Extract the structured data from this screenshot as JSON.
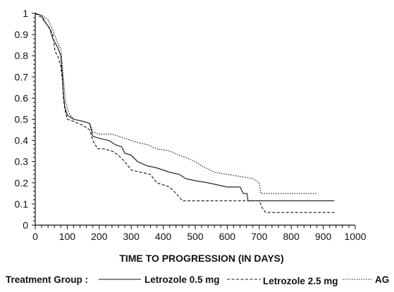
{
  "chart_data": {
    "type": "line",
    "title": "",
    "xlabel": "TIME TO PROGRESSION (IN DAYS)",
    "ylabel": "",
    "xlim": [
      0,
      1000
    ],
    "ylim": [
      0,
      1
    ],
    "xticks": [
      "0",
      "100",
      "200",
      "300",
      "400",
      "500",
      "600",
      "700",
      "800",
      "900",
      "1000"
    ],
    "yticks": [
      "0",
      "0.1",
      "0.2",
      "0.3",
      "0.4",
      "0.5",
      "0.6",
      "0.7",
      "0.8",
      "0.9",
      "1"
    ],
    "grid": false,
    "legend": {
      "title": "Treatment Group :",
      "position": "bottom"
    },
    "series": [
      {
        "name": "Letrozole 0.5 mg",
        "style": "solid",
        "color": "#111111",
        "points": [
          [
            0,
            1.0
          ],
          [
            20,
            0.99
          ],
          [
            30,
            0.96
          ],
          [
            45,
            0.93
          ],
          [
            55,
            0.88
          ],
          [
            70,
            0.84
          ],
          [
            80,
            0.8
          ],
          [
            85,
            0.7
          ],
          [
            88,
            0.62
          ],
          [
            92,
            0.56
          ],
          [
            100,
            0.52
          ],
          [
            120,
            0.5
          ],
          [
            150,
            0.49
          ],
          [
            170,
            0.48
          ],
          [
            180,
            0.42
          ],
          [
            200,
            0.41
          ],
          [
            230,
            0.4
          ],
          [
            250,
            0.38
          ],
          [
            270,
            0.37
          ],
          [
            280,
            0.34
          ],
          [
            300,
            0.33
          ],
          [
            320,
            0.3
          ],
          [
            350,
            0.28
          ],
          [
            380,
            0.27
          ],
          [
            400,
            0.26
          ],
          [
            420,
            0.25
          ],
          [
            450,
            0.24
          ],
          [
            470,
            0.22
          ],
          [
            500,
            0.21
          ],
          [
            540,
            0.2
          ],
          [
            570,
            0.19
          ],
          [
            600,
            0.18
          ],
          [
            640,
            0.18
          ],
          [
            650,
            0.15
          ],
          [
            662,
            0.15
          ],
          [
            665,
            0.115
          ],
          [
            935,
            0.115
          ]
        ]
      },
      {
        "name": "Letrozole 2.5 mg",
        "style": "dashed",
        "color": "#111111",
        "points": [
          [
            0,
            1.0
          ],
          [
            20,
            0.98
          ],
          [
            40,
            0.94
          ],
          [
            55,
            0.9
          ],
          [
            62,
            0.82
          ],
          [
            70,
            0.8
          ],
          [
            80,
            0.75
          ],
          [
            85,
            0.68
          ],
          [
            88,
            0.6
          ],
          [
            92,
            0.55
          ],
          [
            100,
            0.5
          ],
          [
            120,
            0.49
          ],
          [
            150,
            0.47
          ],
          [
            170,
            0.45
          ],
          [
            180,
            0.4
          ],
          [
            195,
            0.36
          ],
          [
            215,
            0.36
          ],
          [
            240,
            0.35
          ],
          [
            260,
            0.33
          ],
          [
            280,
            0.3
          ],
          [
            300,
            0.26
          ],
          [
            330,
            0.25
          ],
          [
            360,
            0.24
          ],
          [
            380,
            0.2
          ],
          [
            400,
            0.19
          ],
          [
            420,
            0.18
          ],
          [
            440,
            0.15
          ],
          [
            460,
            0.115
          ],
          [
            520,
            0.115
          ],
          [
            640,
            0.115
          ],
          [
            700,
            0.115
          ],
          [
            710,
            0.08
          ],
          [
            720,
            0.06
          ],
          [
            935,
            0.06
          ]
        ]
      },
      {
        "name": "AG",
        "style": "dotted",
        "color": "#111111",
        "points": [
          [
            0,
            1.0
          ],
          [
            20,
            0.99
          ],
          [
            40,
            0.97
          ],
          [
            55,
            0.92
          ],
          [
            70,
            0.86
          ],
          [
            80,
            0.83
          ],
          [
            85,
            0.75
          ],
          [
            90,
            0.66
          ],
          [
            95,
            0.58
          ],
          [
            105,
            0.53
          ],
          [
            120,
            0.5
          ],
          [
            150,
            0.49
          ],
          [
            170,
            0.48
          ],
          [
            180,
            0.44
          ],
          [
            200,
            0.43
          ],
          [
            240,
            0.43
          ],
          [
            260,
            0.42
          ],
          [
            280,
            0.41
          ],
          [
            300,
            0.4
          ],
          [
            320,
            0.39
          ],
          [
            350,
            0.38
          ],
          [
            380,
            0.36
          ],
          [
            420,
            0.35
          ],
          [
            450,
            0.33
          ],
          [
            470,
            0.32
          ],
          [
            500,
            0.3
          ],
          [
            520,
            0.28
          ],
          [
            560,
            0.25
          ],
          [
            600,
            0.24
          ],
          [
            640,
            0.23
          ],
          [
            680,
            0.22
          ],
          [
            700,
            0.2
          ],
          [
            705,
            0.15
          ],
          [
            880,
            0.15
          ]
        ]
      }
    ]
  }
}
